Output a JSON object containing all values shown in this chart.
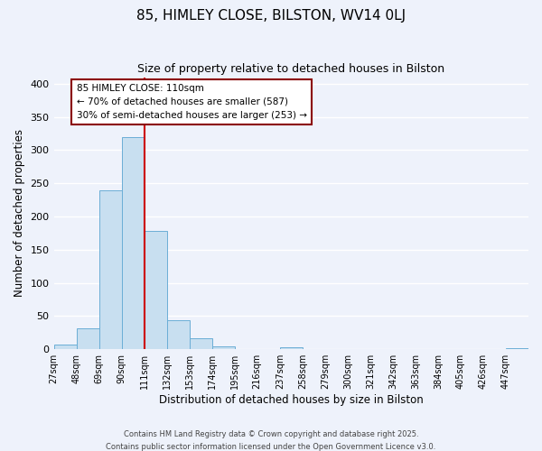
{
  "title": "85, HIMLEY CLOSE, BILSTON, WV14 0LJ",
  "subtitle": "Size of property relative to detached houses in Bilston",
  "xlabel": "Distribution of detached houses by size in Bilston",
  "ylabel": "Number of detached properties",
  "bar_color": "#c8dff0",
  "bar_edge_color": "#6baed6",
  "background_color": "#eef2fb",
  "grid_color": "#ffffff",
  "bin_labels": [
    "27sqm",
    "48sqm",
    "69sqm",
    "90sqm",
    "111sqm",
    "132sqm",
    "153sqm",
    "174sqm",
    "195sqm",
    "216sqm",
    "237sqm",
    "258sqm",
    "279sqm",
    "300sqm",
    "321sqm",
    "342sqm",
    "363sqm",
    "384sqm",
    "405sqm",
    "426sqm",
    "447sqm"
  ],
  "bar_heights": [
    7,
    31,
    240,
    320,
    178,
    44,
    16,
    5,
    0,
    0,
    3,
    0,
    0,
    0,
    0,
    0,
    0,
    0,
    0,
    0,
    1
  ],
  "property_line_x": 111,
  "property_line_label": "85 HIMLEY CLOSE: 110sqm",
  "annotation_line1": "← 70% of detached houses are smaller (587)",
  "annotation_line2": "30% of semi-detached houses are larger (253) →",
  "ylim": [
    0,
    410
  ],
  "yticks": [
    0,
    50,
    100,
    150,
    200,
    250,
    300,
    350,
    400
  ],
  "footer_line1": "Contains HM Land Registry data © Crown copyright and database right 2025.",
  "footer_line2": "Contains public sector information licensed under the Open Government Licence v3.0.",
  "bin_edges": [
    27,
    48,
    69,
    90,
    111,
    132,
    153,
    174,
    195,
    216,
    237,
    258,
    279,
    300,
    321,
    342,
    363,
    384,
    405,
    426,
    447
  ]
}
